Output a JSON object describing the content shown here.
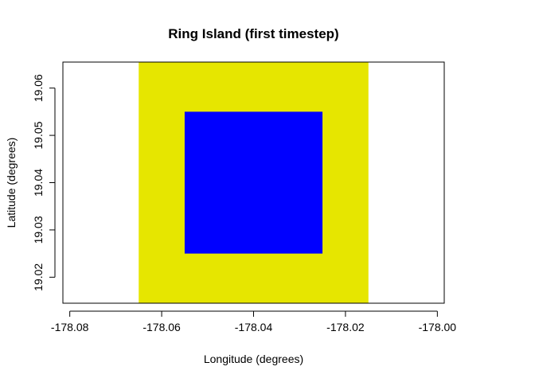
{
  "chart_data": {
    "type": "heatmap",
    "title": "Ring Island (first timestep)",
    "xlabel": "Longitude (degrees)",
    "ylabel": "Latitude (degrees)",
    "xlim": [
      -178.0815,
      -177.9985
    ],
    "ylim": [
      19.0145,
      19.0655
    ],
    "x_ticks": [
      -178.08,
      -178.06,
      -178.04,
      -178.02,
      -178.0
    ],
    "x_tick_labels": [
      "-178.08",
      "-178.06",
      "-178.04",
      "-178.02",
      "-178.00"
    ],
    "y_ticks": [
      19.02,
      19.03,
      19.04,
      19.05,
      19.06
    ],
    "y_tick_labels": [
      "19.02",
      "19.03",
      "19.04",
      "19.05",
      "19.06"
    ],
    "grid": false,
    "legend": "none",
    "regions": [
      {
        "x": [
          -178.065,
          -178.015
        ],
        "y": [
          19.0145,
          19.0655
        ],
        "color": "#e6e600"
      },
      {
        "x": [
          -178.055,
          -178.025
        ],
        "y": [
          19.025,
          19.055
        ],
        "color": "#0000ff"
      }
    ]
  }
}
